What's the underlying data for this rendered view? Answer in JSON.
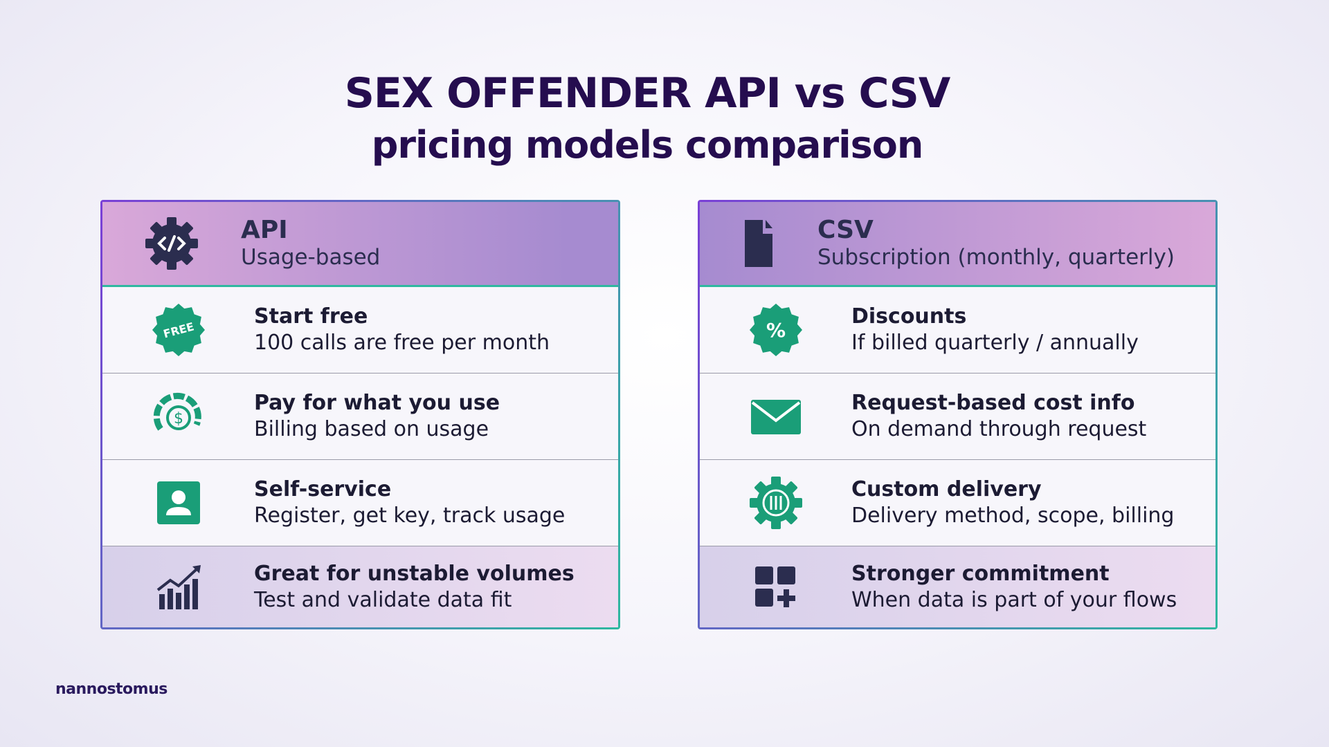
{
  "header": {
    "title": "SEX OFFENDER API vs CSV",
    "subtitle": "pricing models comparison"
  },
  "cards": [
    {
      "title": "API",
      "subtitle": "Usage-based",
      "rows": [
        {
          "title": "Start free",
          "text": "100 calls are free per month",
          "icon_text": "FREE"
        },
        {
          "title": "Pay for what you use",
          "text": "Billing based on usage",
          "icon_text": "$"
        },
        {
          "title": "Self-service",
          "text": "Register, get key, track usage"
        },
        {
          "title": "Great for unstable volumes",
          "text": "Test and validate data fit"
        }
      ]
    },
    {
      "title": "CSV",
      "subtitle": "Subscription (monthly, quarterly)",
      "rows": [
        {
          "title": "Discounts",
          "text": "If billed quarterly / annually",
          "icon_text": "%"
        },
        {
          "title": "Request-based cost info",
          "text": "On demand through request"
        },
        {
          "title": "Custom delivery",
          "text": "Delivery method, scope, billing"
        },
        {
          "title": "Stronger commitment",
          "text": "When data is part of your flows"
        }
      ]
    }
  ],
  "brand": "nannostomus"
}
